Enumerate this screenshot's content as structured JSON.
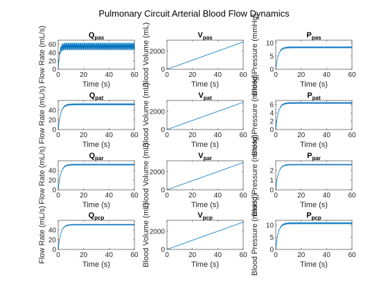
{
  "figure": {
    "title": "Pulmonary Circuit Arterial Blood Flow Dynamics",
    "line_color": "#0072BD"
  },
  "chart_data": [
    {
      "type": "line",
      "title_main": "Q",
      "title_sub": "pas",
      "xlabel": "Time (s)",
      "ylabel": "Flow Rate (mL/s)",
      "xlim": [
        0,
        60
      ],
      "ylim": [
        0,
        70
      ],
      "xticks": [
        0,
        20,
        40,
        60
      ],
      "yticks": [
        0,
        20,
        40,
        60
      ],
      "series": [
        {
          "shape": "oscillating",
          "plateau": 55,
          "amplitude": 8,
          "rise_time": 1.0,
          "x_range": [
            0,
            60
          ]
        }
      ]
    },
    {
      "type": "line",
      "title_main": "V",
      "title_sub": "pas",
      "xlabel": "Time (s)",
      "ylabel": "Blood Volume (mL)",
      "xlim": [
        0,
        60
      ],
      "ylim": [
        0,
        3200
      ],
      "xticks": [
        0,
        20,
        40,
        60
      ],
      "yticks": [
        0,
        2000
      ],
      "series": [
        {
          "shape": "linear",
          "x_range": [
            0,
            60
          ],
          "y_range": [
            0,
            3000
          ]
        }
      ]
    },
    {
      "type": "line",
      "title_main": "P",
      "title_sub": "pas",
      "xlabel": "Time (s)",
      "ylabel": "Blood Pressure (mmHg)",
      "xlim": [
        0,
        60
      ],
      "ylim": [
        0,
        11
      ],
      "xticks": [
        0,
        20,
        40,
        60
      ],
      "yticks": [
        0,
        5,
        10
      ],
      "series": [
        {
          "shape": "saturating",
          "plateau": 8.3,
          "amplitude": 0.25,
          "rise_time": 2.0,
          "x_range": [
            0,
            60
          ]
        }
      ]
    },
    {
      "type": "line",
      "title_main": "Q",
      "title_sub": "pat",
      "xlabel": "Time (s)",
      "ylabel": "Flow Rate (mL/s)",
      "xlim": [
        0,
        60
      ],
      "ylim": [
        0,
        60
      ],
      "xticks": [
        0,
        20,
        40,
        60
      ],
      "yticks": [
        0,
        20,
        40
      ],
      "series": [
        {
          "shape": "saturating",
          "plateau": 52,
          "amplitude": 1.5,
          "rise_time": 2.0,
          "x_range": [
            0,
            60
          ]
        }
      ]
    },
    {
      "type": "line",
      "title_main": "V",
      "title_sub": "pat",
      "xlabel": "Time (s)",
      "ylabel": "Blood Volume (mL)",
      "xlim": [
        0,
        60
      ],
      "ylim": [
        0,
        3200
      ],
      "xticks": [
        0,
        20,
        40,
        60
      ],
      "yticks": [
        0,
        2000
      ],
      "series": [
        {
          "shape": "linear",
          "x_range": [
            0,
            60
          ],
          "y_range": [
            0,
            3000
          ]
        }
      ]
    },
    {
      "type": "line",
      "title_main": "P",
      "title_sub": "pat",
      "xlabel": "Time (s)",
      "ylabel": "Blood Pressure (mmHg)",
      "xlim": [
        0,
        60
      ],
      "ylim": [
        0,
        7
      ],
      "xticks": [
        0,
        20,
        40,
        60
      ],
      "yticks": [
        0,
        2,
        4,
        6
      ],
      "series": [
        {
          "shape": "saturating",
          "plateau": 6.4,
          "amplitude": 0.15,
          "rise_time": 2.0,
          "x_range": [
            0,
            60
          ]
        }
      ]
    },
    {
      "type": "line",
      "title_main": "Q",
      "title_sub": "par",
      "xlabel": "Time (s)",
      "ylabel": "Flow Rate (mL/s)",
      "xlim": [
        0,
        60
      ],
      "ylim": [
        0,
        60
      ],
      "xticks": [
        0,
        20,
        40,
        60
      ],
      "yticks": [
        0,
        20,
        40
      ],
      "series": [
        {
          "shape": "saturating",
          "plateau": 52,
          "amplitude": 1.2,
          "rise_time": 2.0,
          "x_range": [
            0,
            60
          ]
        }
      ]
    },
    {
      "type": "line",
      "title_main": "V",
      "title_sub": "par",
      "xlabel": "Time (s)",
      "ylabel": "Blood Volume (mL)",
      "xlim": [
        0,
        60
      ],
      "ylim": [
        0,
        3200
      ],
      "xticks": [
        0,
        20,
        40,
        60
      ],
      "yticks": [
        0,
        2000
      ],
      "series": [
        {
          "shape": "linear",
          "x_range": [
            0,
            60
          ],
          "y_range": [
            0,
            3000
          ]
        }
      ]
    },
    {
      "type": "line",
      "title_main": "P",
      "title_sub": "par",
      "xlabel": "Time (s)",
      "ylabel": "Blood Pressure (mmHg)",
      "xlim": [
        0,
        60
      ],
      "ylim": [
        0,
        3
      ],
      "xticks": [
        0,
        20,
        40,
        60
      ],
      "yticks": [
        0,
        1,
        2
      ],
      "series": [
        {
          "shape": "saturating",
          "plateau": 2.6,
          "amplitude": 0.05,
          "rise_time": 2.0,
          "x_range": [
            0,
            60
          ]
        }
      ]
    },
    {
      "type": "line",
      "title_main": "Q",
      "title_sub": "pcp",
      "xlabel": "Time (s)",
      "ylabel": "Flow Rate (mL/s)",
      "xlim": [
        0,
        60
      ],
      "ylim": [
        0,
        60
      ],
      "xticks": [
        0,
        20,
        40,
        60
      ],
      "yticks": [
        0,
        20,
        40
      ],
      "series": [
        {
          "shape": "saturating",
          "plateau": 51,
          "amplitude": 1.0,
          "rise_time": 2.0,
          "x_range": [
            0,
            60
          ]
        }
      ]
    },
    {
      "type": "line",
      "title_main": "V",
      "title_sub": "pcp",
      "xlabel": "Time (s)",
      "ylabel": "Blood Volume (mL)",
      "xlim": [
        0,
        60
      ],
      "ylim": [
        0,
        3200
      ],
      "xticks": [
        0,
        20,
        40,
        60
      ],
      "yticks": [
        0,
        2000
      ],
      "series": [
        {
          "shape": "linear",
          "x_range": [
            0,
            60
          ],
          "y_range": [
            0,
            3000
          ]
        }
      ]
    },
    {
      "type": "line",
      "title_main": "P",
      "title_sub": "pcp",
      "xlabel": "Time (s)",
      "ylabel": "Blood Pressure (mmHg)",
      "xlim": [
        0,
        60
      ],
      "ylim": [
        0,
        12
      ],
      "xticks": [
        0,
        20,
        40,
        60
      ],
      "yticks": [
        0,
        5,
        10
      ],
      "series": [
        {
          "shape": "saturating",
          "plateau": 10.8,
          "amplitude": 0.3,
          "rise_time": 2.0,
          "x_range": [
            0,
            60
          ]
        }
      ]
    }
  ]
}
